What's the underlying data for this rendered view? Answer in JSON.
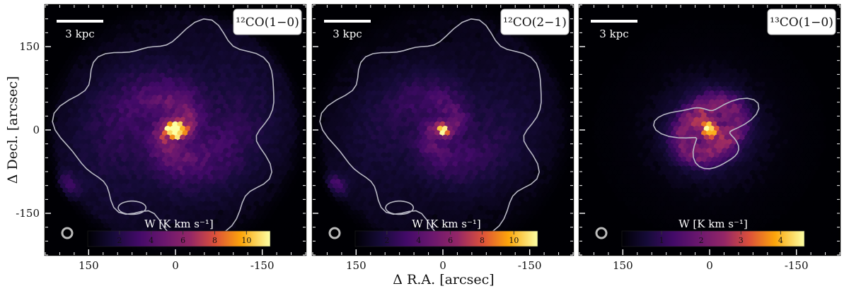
{
  "chart_data": {
    "type": "heatmap",
    "x_axis": {
      "label": "Δ R.A. [arcsec]",
      "ticks": [
        150,
        0,
        -150
      ],
      "tick_labels": [
        "150",
        "0",
        "-150"
      ],
      "range": [
        225,
        -225
      ],
      "reversed": true
    },
    "y_axis": {
      "label": "Δ Decl. [arcsec]",
      "ticks": [
        150,
        0,
        -150
      ],
      "tick_labels": [
        "150",
        "0",
        "-150"
      ],
      "range": [
        -225,
        225
      ]
    },
    "colormap": "inferno",
    "scale_bar_label": "3 kpc",
    "beam": "circle",
    "panels": [
      {
        "line_label": "¹²CO(1−0)",
        "colorbar": {
          "label": "W [K km s⁻¹]",
          "range": [
            0,
            11.5
          ],
          "ticks": [
            2,
            4,
            6,
            8,
            10
          ],
          "tick_labels": [
            "2",
            "4",
            "6",
            "8",
            "10"
          ]
        },
        "peak": 11.5
      },
      {
        "line_label": "¹²CO(2−1)",
        "colorbar": {
          "label": "W [K km s⁻¹]",
          "range": [
            0,
            11.5
          ],
          "ticks": [
            2,
            4,
            6,
            8,
            10
          ],
          "tick_labels": [
            "2",
            "4",
            "6",
            "8",
            "10"
          ]
        },
        "peak": 11.5
      },
      {
        "line_label": "¹³CO(1−0)",
        "colorbar": {
          "label": "W [K km s⁻¹]",
          "range": [
            0,
            4.6
          ],
          "ticks": [
            1,
            2,
            3,
            4
          ],
          "tick_labels": [
            "1",
            "2",
            "3",
            "4"
          ]
        },
        "peak": 4.6
      }
    ]
  }
}
